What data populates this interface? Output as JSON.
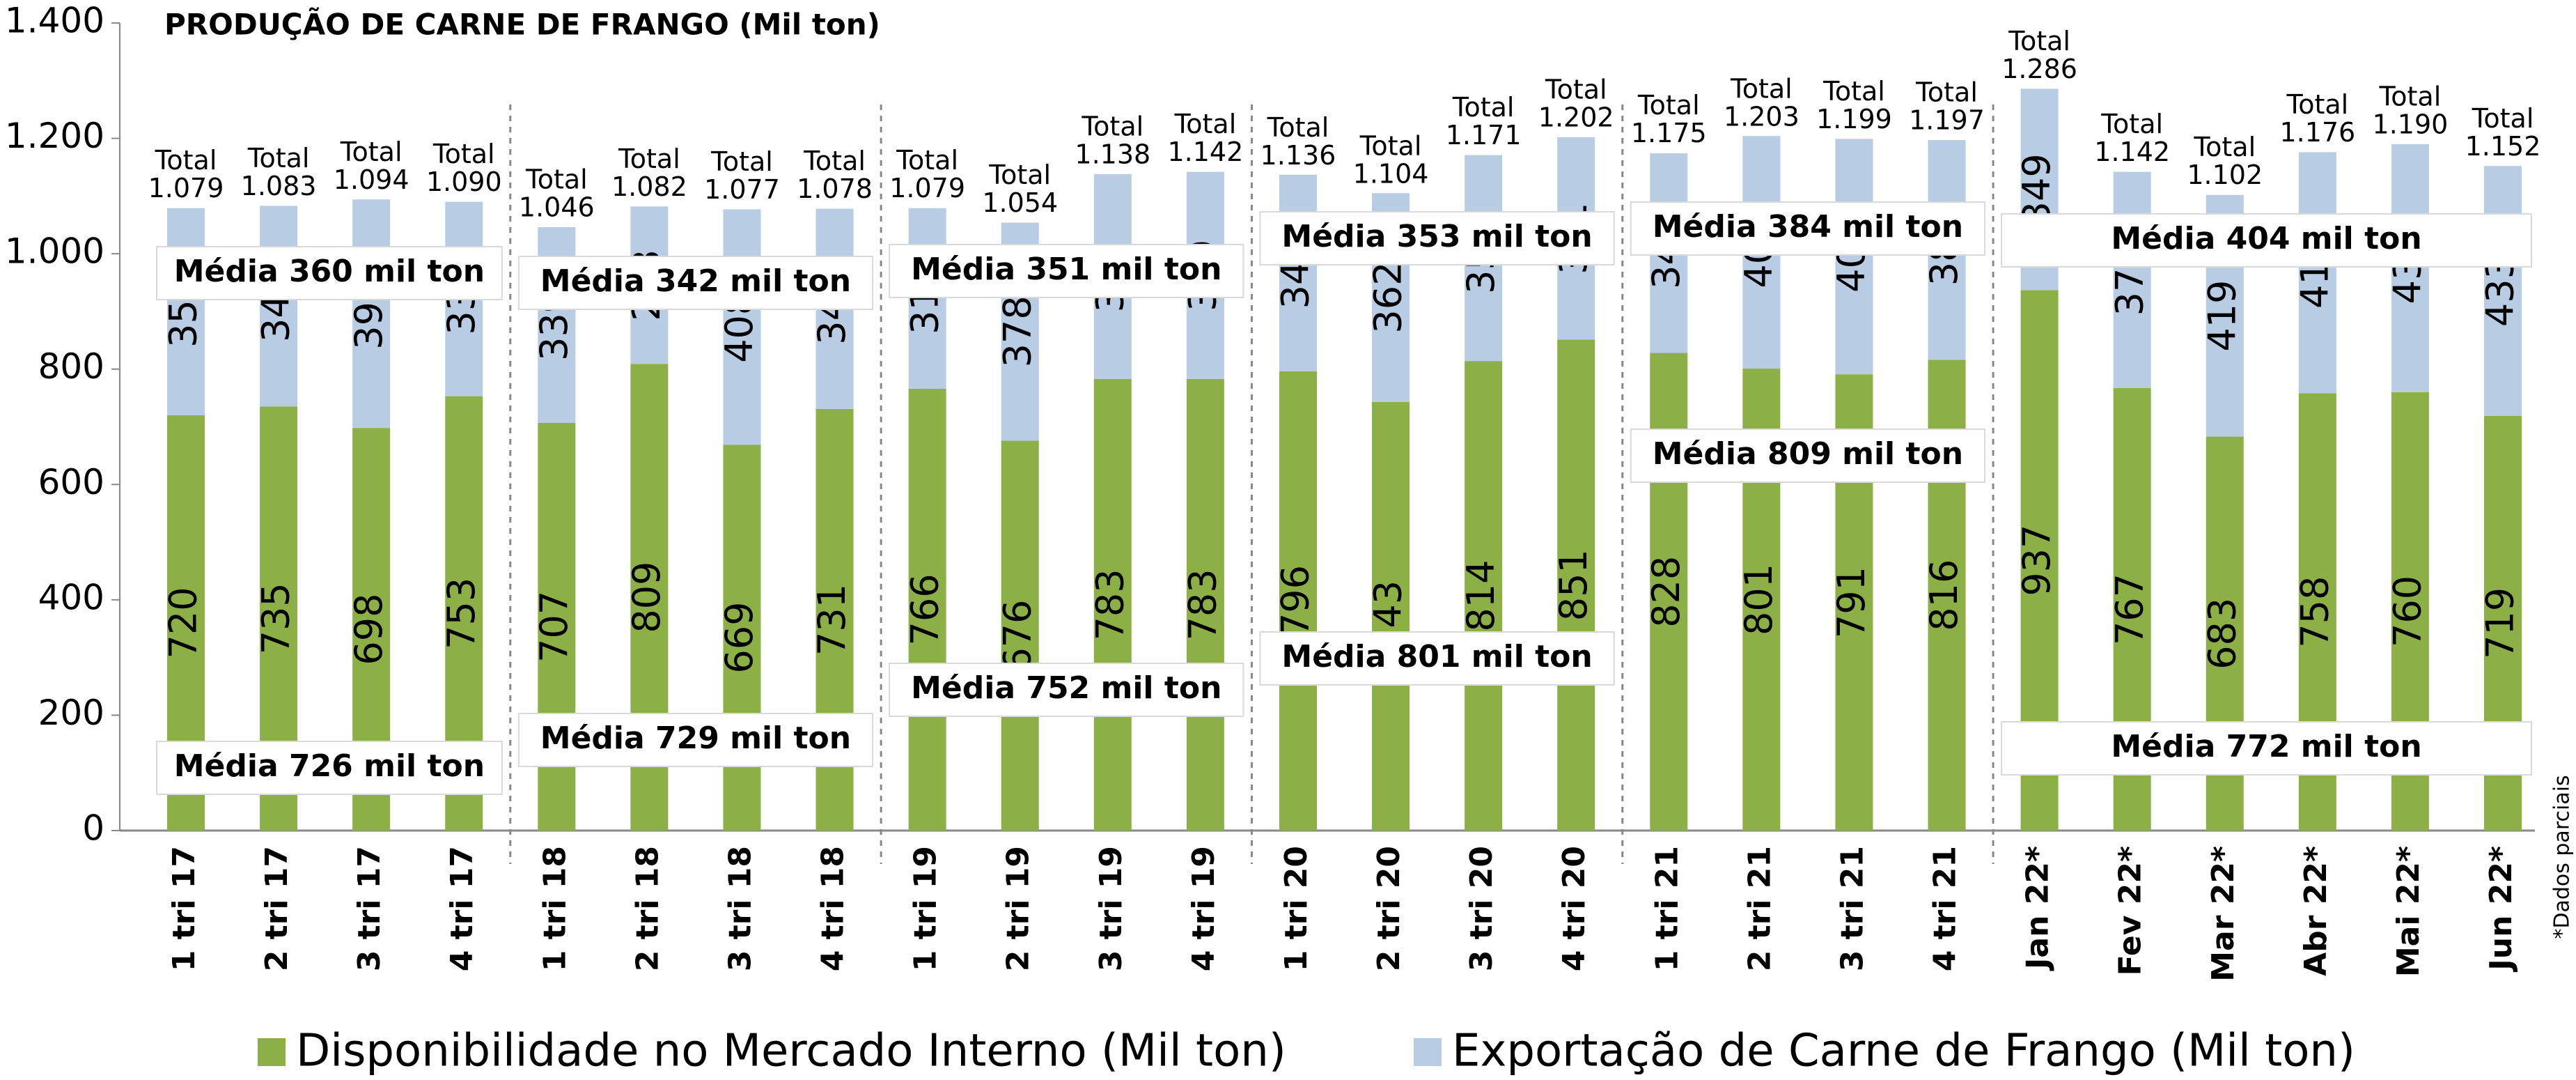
{
  "chart_data": {
    "type": "stacked_bar",
    "title": "PRODUÇÃO DE CARNE DE FRANGO (Mil ton)",
    "note": "*Dados parciais",
    "categories": [
      "1 tri 17",
      "2 tri 17",
      "3 tri 17",
      "4 tri 17",
      "1 tri 18",
      "2 tri 18",
      "3 tri 18",
      "4 tri 18",
      "1 tri 19",
      "2 tri 19",
      "3 tri 19",
      "4 tri 19",
      "1 tri 20",
      "2 tri 20",
      "3 tri 20",
      "4 tri 20",
      "1 tri 21",
      "2 tri 21",
      "3 tri 21",
      "4 tri 21",
      "Jan 22*",
      "Fev 22*",
      "Mar 22*",
      "Abr 22*",
      "Mai 22*",
      "Jun 22*"
    ],
    "series": [
      {
        "name": "Disponibilidade no Mercado Interno (Mil ton)",
        "color": "#8db046",
        "value_label_color": "#000000",
        "highlight_color": "#ff0000",
        "highlight_category": "Jan 22*",
        "values": [
          720,
          735,
          698,
          753,
          707,
          809,
          669,
          731,
          766,
          676,
          783,
          783,
          796,
          743,
          814,
          851,
          828,
          801,
          791,
          816,
          937,
          767,
          683,
          758,
          760,
          719
        ],
        "averages": [
          "Média 726 mil ton",
          "Média 729 mil ton",
          "Média 752 mil ton",
          "Média 801 mil ton",
          "Média 809 mil ton",
          "Média 772 mil ton"
        ],
        "average_color": "#3e6b25"
      },
      {
        "name": "Exportação de Carne de Frango (Mil ton)",
        "color": "#b8cce4",
        "value_label_color": "#000000",
        "values": [
          359,
          348,
          396,
          337,
          339,
          273,
          408,
          347,
          313,
          378,
          355,
          359,
          341,
          362,
          357,
          351,
          346,
          403,
          408,
          381,
          349,
          375,
          419,
          418,
          430,
          433
        ],
        "averages": [
          "Média 360 mil ton",
          "Média 342 mil ton",
          "Média 351 mil ton",
          "Média 353 mil ton",
          "Média 384 mil ton",
          "Média 404 mil ton"
        ],
        "average_color": "#1f497d"
      }
    ],
    "totals": {
      "label": "Total",
      "values": [
        1079,
        1083,
        1094,
        1090,
        1046,
        1082,
        1077,
        1078,
        1079,
        1054,
        1138,
        1142,
        1136,
        1104,
        1171,
        1202,
        1175,
        1203,
        1199,
        1197,
        1286,
        1142,
        1102,
        1176,
        1190,
        1152
      ],
      "value_labels": [
        "1.079",
        "1.083",
        "1.094",
        "1.090",
        "1.046",
        "1.082",
        "1.077",
        "1.078",
        "1.079",
        "1.054",
        "1.138",
        "1.142",
        "1.136",
        "1.104",
        "1.171",
        "1.202",
        "1.175",
        "1.203",
        "1.199",
        "1.197",
        "1.286",
        "1.142",
        "1.102",
        "1.176",
        "1.190",
        "1.152"
      ]
    },
    "ylim": [
      0,
      1400
    ],
    "yticks": [
      0,
      200,
      400,
      600,
      800,
      {
        "value": 1000,
        "label": "1.000"
      },
      {
        "value": 1200,
        "label": "1.200"
      },
      {
        "value": 1400,
        "label": "1.400"
      }
    ],
    "grid": false
  }
}
